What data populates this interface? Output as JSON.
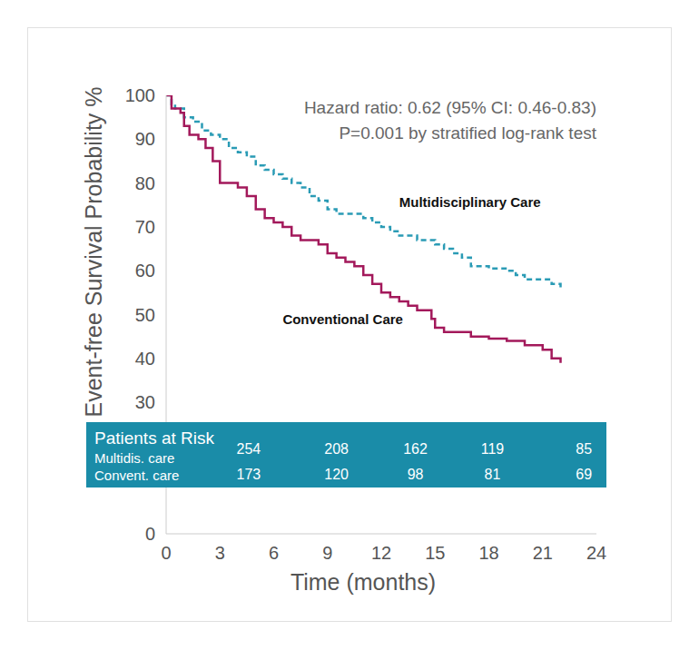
{
  "chart_data": {
    "type": "step",
    "x_label": "Time (months)",
    "y_label": "Event-free Survival Probability %",
    "annotations": [
      "Hazard ratio: 0.62 (95% CI: 0.46-0.83)",
      "P=0.001 by stratified log-rank test"
    ],
    "xlim": [
      0,
      24
    ],
    "xticks": [
      0,
      3,
      6,
      9,
      12,
      15,
      18,
      21,
      24
    ],
    "ylim": [
      0,
      100
    ],
    "yticks": [
      0,
      30,
      40,
      50,
      60,
      70,
      80,
      90,
      100
    ],
    "grid": false,
    "series": [
      {
        "name": "Multidisciplinary Care",
        "color": "#2a9bb5",
        "line_style": "dashed",
        "x": [
          0,
          0.3,
          0.5,
          1,
          1.5,
          2,
          2.5,
          3,
          3.5,
          4,
          4.5,
          5,
          5.5,
          6,
          6.5,
          7,
          7.5,
          8,
          8.5,
          9,
          9.5,
          11,
          11.5,
          12,
          12.5,
          13,
          14,
          15,
          15.5,
          16,
          16.5,
          17,
          18,
          19,
          19.5,
          20,
          21.5,
          22
        ],
        "values": [
          100,
          98,
          97,
          95,
          94,
          92,
          91,
          90,
          88,
          87,
          86,
          84,
          83,
          82,
          81,
          80,
          79,
          77,
          76,
          74,
          73,
          72,
          71,
          70,
          69,
          68,
          67,
          66,
          65,
          64,
          63,
          61,
          60.5,
          60,
          59,
          58,
          57,
          56
        ]
      },
      {
        "name": "Conventional Care",
        "color": "#a3195b",
        "line_style": "solid",
        "x": [
          0,
          0.3,
          0.8,
          1,
          1.3,
          1.8,
          2.2,
          2.6,
          3,
          4,
          4.5,
          5,
          5.5,
          6,
          6.5,
          7,
          7.5,
          8.5,
          9,
          9.5,
          10,
          10.5,
          11,
          11.5,
          12,
          12.5,
          13,
          13.5,
          14,
          14.8,
          15,
          15.5,
          17,
          18,
          19,
          20,
          21,
          21.5,
          22
        ],
        "values": [
          100,
          97,
          96,
          93,
          91,
          90,
          88,
          85,
          80,
          79,
          77,
          74,
          72,
          71,
          70,
          68,
          67,
          66,
          64,
          63,
          62,
          61,
          59,
          57,
          55,
          54,
          53,
          52,
          51,
          49,
          47,
          46,
          45,
          44.5,
          44,
          43,
          42,
          40,
          39
        ]
      }
    ],
    "at_risk": {
      "title": "Patients at Risk",
      "rows": [
        {
          "name": "Multidis. care",
          "values": [
            254,
            208,
            162,
            119,
            85
          ]
        },
        {
          "name": "Convent. care",
          "values": [
            173,
            120,
            98,
            81,
            69
          ]
        }
      ]
    }
  }
}
